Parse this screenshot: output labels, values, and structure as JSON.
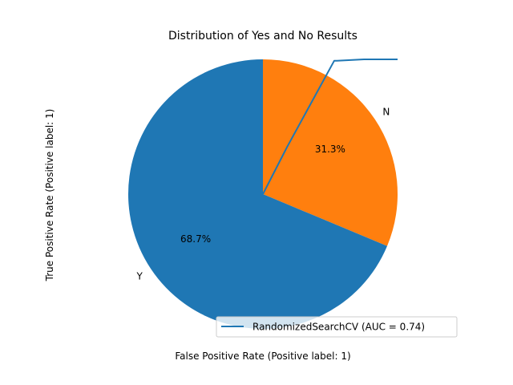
{
  "chart_data": {
    "type": "pie",
    "title": "Distribution of Yes and No Results",
    "xlabel": "False Positive Rate (Positive label: 1)",
    "ylabel": "True Positive Rate (Positive label: 1)",
    "slices": [
      {
        "label": "N",
        "percent": 31.3,
        "percent_label": "31.3%",
        "color": "#ff7f0e"
      },
      {
        "label": "Y",
        "percent": 68.7,
        "percent_label": "68.7%",
        "color": "#1f77b4"
      }
    ],
    "start_angle_deg": 90,
    "direction": "clockwise",
    "overlay_line": {
      "name": "RandomizedSearchCV (AUC = 0.74)",
      "color": "#1f77b4",
      "fpr": [
        0.0,
        0.18,
        0.53,
        0.55,
        0.75,
        1.0
      ],
      "tpr": [
        0.0,
        0.35,
        0.99,
        0.99,
        1.0,
        1.0
      ]
    },
    "legend": {
      "entries": [
        "RandomizedSearchCV (AUC = 0.74)"
      ],
      "placement": "lower-right"
    }
  }
}
